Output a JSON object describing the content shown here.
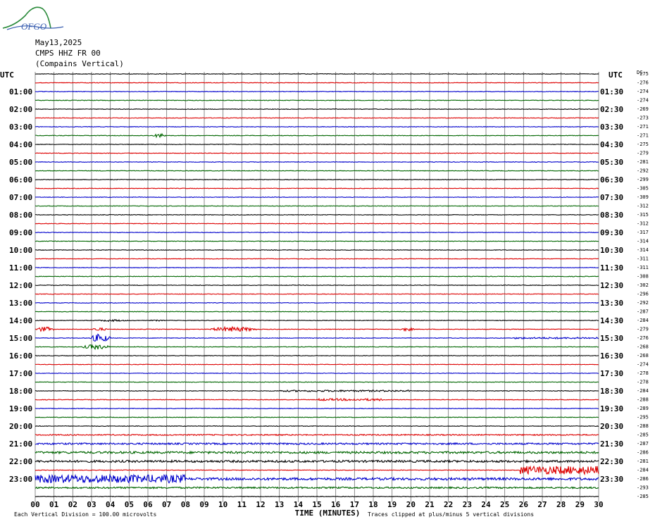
{
  "header": {
    "logo_text": "OFGO",
    "date": "May13,2025",
    "station": "CMPS HHZ FR 00",
    "site": "(Compains Vertical)"
  },
  "chart_data": {
    "type": "helicorder",
    "left_axis_title": "UTC",
    "right_axis_title": "UTC",
    "dc_label": "DC",
    "left_labels": [
      "01:00",
      "02:00",
      "03:00",
      "04:00",
      "05:00",
      "06:00",
      "07:00",
      "08:00",
      "09:00",
      "10:00",
      "11:00",
      "12:00",
      "13:00",
      "14:00",
      "15:00",
      "16:00",
      "17:00",
      "18:00",
      "19:00",
      "20:00",
      "21:00",
      "22:00",
      "23:00"
    ],
    "right_labels": [
      "01:30",
      "02:30",
      "03:30",
      "04:30",
      "05:30",
      "06:30",
      "07:30",
      "08:30",
      "09:30",
      "10:30",
      "11:30",
      "12:30",
      "13:30",
      "14:30",
      "15:30",
      "16:30",
      "17:30",
      "18:30",
      "19:30",
      "20:30",
      "21:30",
      "22:30",
      "23:30"
    ],
    "x_ticks": [
      "00",
      "01",
      "02",
      "03",
      "04",
      "05",
      "06",
      "07",
      "08",
      "09",
      "10",
      "11",
      "12",
      "13",
      "14",
      "15",
      "16",
      "17",
      "18",
      "19",
      "20",
      "21",
      "22",
      "23",
      "24",
      "25",
      "26",
      "27",
      "28",
      "29",
      "30"
    ],
    "xlabel": "TIME (MINUTES)",
    "dc_offsets": [
      "-275",
      "-276",
      "-274",
      "-274",
      "-269",
      "-273",
      "-271",
      "-271",
      "-275",
      "-279",
      "-281",
      "-292",
      "-299",
      "-305",
      "-309",
      "-312",
      "-315",
      "-312",
      "-317",
      "-314",
      "-314",
      "-311",
      "-311",
      "-308",
      "-302",
      "-296",
      "-292",
      "-287",
      "-284",
      "-279",
      "-276",
      "-268",
      "-268",
      "-274",
      "-278",
      "-278",
      "-284",
      "-288",
      "-289",
      "-295",
      "-288",
      "-285",
      "-287",
      "-286",
      "-281",
      "-284",
      "-286",
      "-293",
      "-285"
    ],
    "trace_colors": [
      "#000000",
      "#dd0000",
      "#0000cc",
      "#006600"
    ],
    "footer_left": "Each Vertical Division =  100.00 microvolts",
    "footer_right": "Traces clipped at plus/minus 5 vertical divisions",
    "events": [
      {
        "trace": 7,
        "minute_start": 6.3,
        "minute_end": 7.0,
        "amplitude": 2.5
      },
      {
        "trace": 28,
        "minute_start": 3.2,
        "minute_end": 5.0,
        "amplitude": 1.2
      },
      {
        "trace": 28,
        "minute_start": 6.0,
        "minute_end": 7.0,
        "amplitude": 0.8
      },
      {
        "trace": 29,
        "minute_start": 0.0,
        "minute_end": 1.0,
        "amplitude": 3.0
      },
      {
        "trace": 29,
        "minute_start": 3.0,
        "minute_end": 3.8,
        "amplitude": 2.0
      },
      {
        "trace": 29,
        "minute_start": 9.3,
        "minute_end": 11.8,
        "amplitude": 3.0
      },
      {
        "trace": 29,
        "minute_start": 19.4,
        "minute_end": 20.2,
        "amplitude": 2.0
      },
      {
        "trace": 30,
        "minute_start": 2.9,
        "minute_end": 4.0,
        "amplitude": 5.0
      },
      {
        "trace": 30,
        "minute_start": 25.5,
        "minute_end": 30.0,
        "amplitude": 1.0
      },
      {
        "trace": 31,
        "minute_start": 2.5,
        "minute_end": 4.0,
        "amplitude": 3.0
      },
      {
        "trace": 36,
        "minute_start": 13.0,
        "minute_end": 20.0,
        "amplitude": 1.0
      },
      {
        "trace": 37,
        "minute_start": 15.0,
        "minute_end": 18.5,
        "amplitude": 1.3
      },
      {
        "trace": 41,
        "minute_start": 0.0,
        "minute_end": 30.0,
        "amplitude": 0.7
      },
      {
        "trace": 42,
        "minute_start": 0.0,
        "minute_end": 30.0,
        "amplitude": 1.0
      },
      {
        "trace": 43,
        "minute_start": 0.0,
        "minute_end": 30.0,
        "amplitude": 1.3
      },
      {
        "trace": 44,
        "minute_start": 0.0,
        "minute_end": 30.0,
        "amplitude": 1.3
      },
      {
        "trace": 45,
        "minute_start": 25.8,
        "minute_end": 30.0,
        "amplitude": 5.0
      },
      {
        "trace": 46,
        "minute_start": 0.0,
        "minute_end": 8.0,
        "amplitude": 5.0
      },
      {
        "trace": 46,
        "minute_start": 8.0,
        "minute_end": 30.0,
        "amplitude": 1.5
      },
      {
        "trace": 47,
        "minute_start": 0.0,
        "minute_end": 30.0,
        "amplitude": 1.0
      }
    ]
  }
}
